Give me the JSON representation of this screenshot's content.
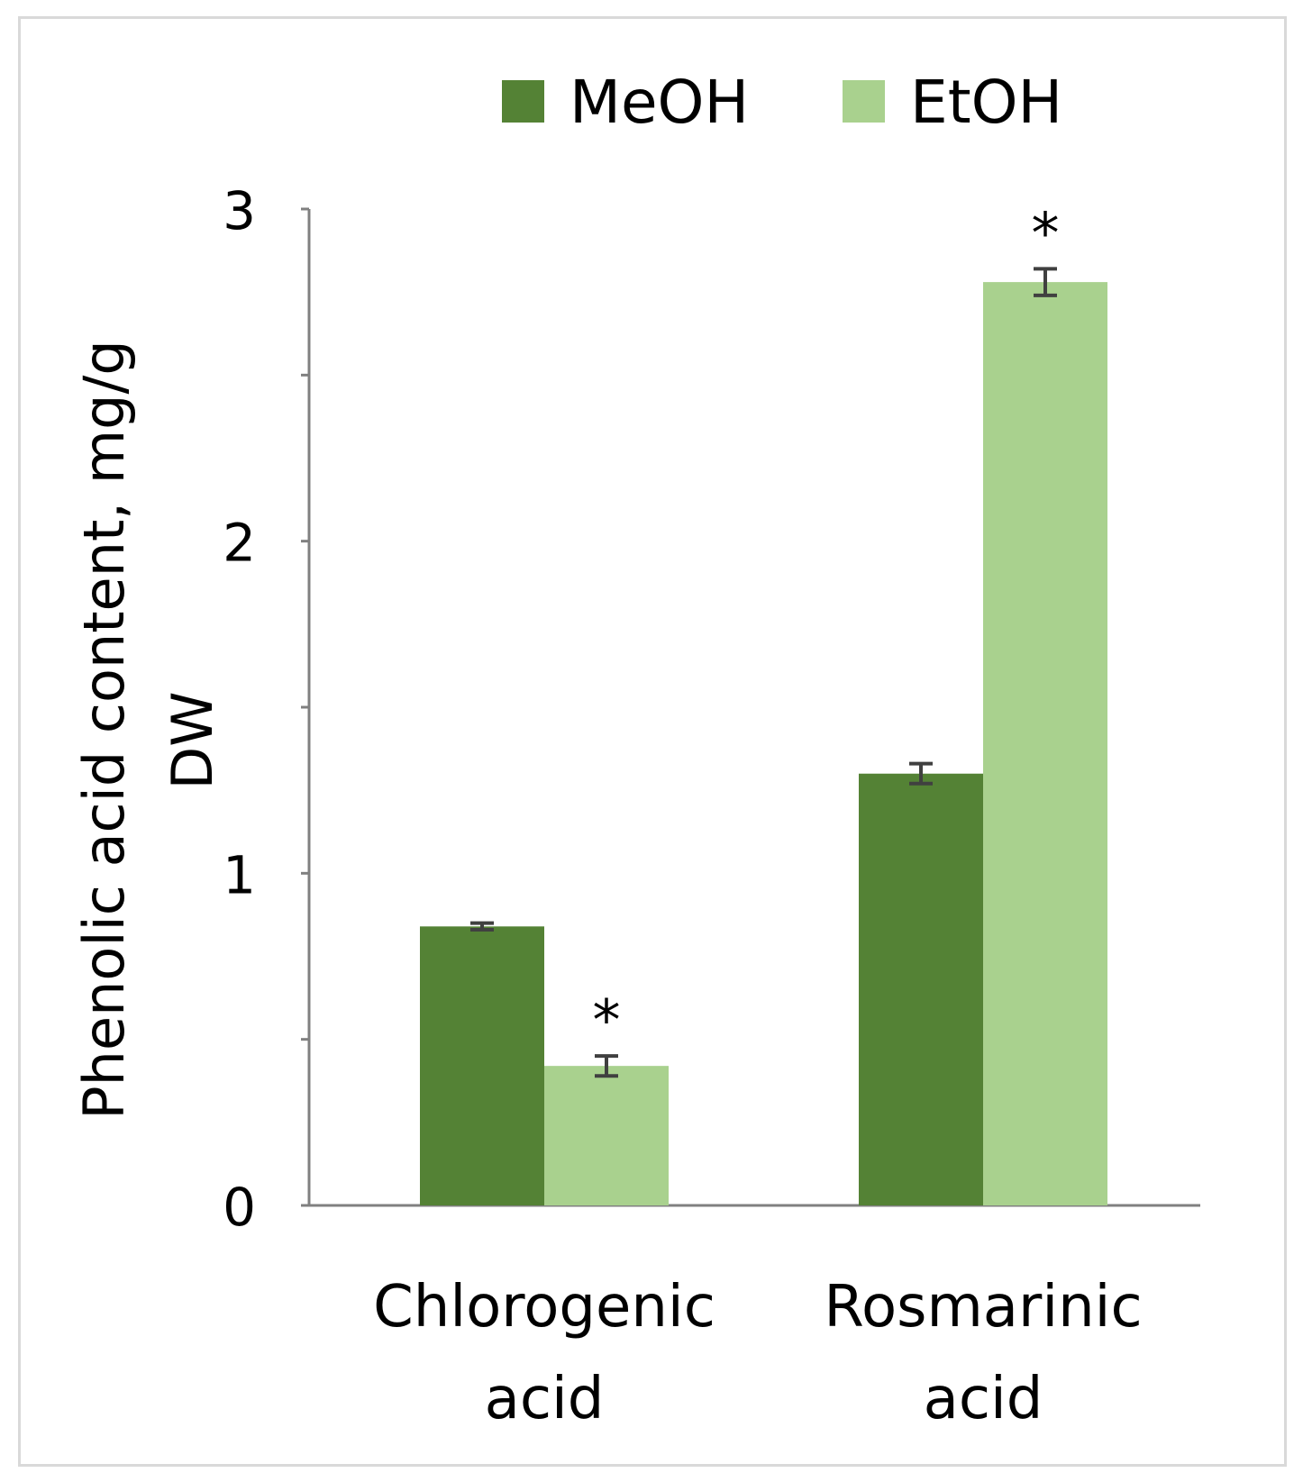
{
  "chart_data": {
    "type": "bar",
    "categories": [
      [
        "Chlorogenic",
        "acid"
      ],
      [
        "Rosmarinic",
        "acid"
      ]
    ],
    "series": [
      {
        "name": "MeOH",
        "color": "#548235",
        "values": [
          0.84,
          1.3
        ],
        "errors": [
          0.01,
          0.03
        ]
      },
      {
        "name": "EtOH",
        "color": "#a9d18e",
        "values": [
          0.42,
          2.78
        ],
        "errors": [
          0.03,
          0.04
        ]
      }
    ],
    "significance": [
      [
        null,
        null
      ],
      [
        "*",
        "*"
      ]
    ],
    "ylabel": [
      "Phenolic acid content, mg/g",
      "DW"
    ],
    "ylim": [
      0,
      3
    ],
    "yticks": [
      "0",
      "1",
      "2",
      "3"
    ],
    "minor_tick_step": 0.5,
    "grid": false,
    "legend_position": "top-center"
  }
}
